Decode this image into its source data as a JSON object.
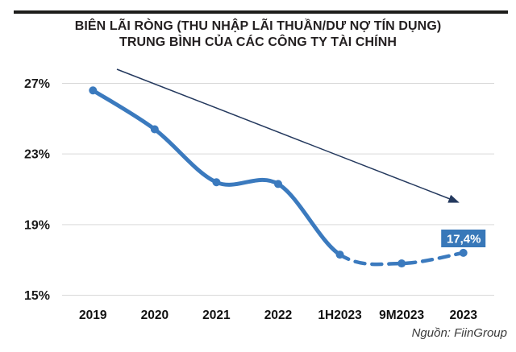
{
  "page": {
    "title_line1": "BIÊN LÃI RÒNG (THU NHẬP LÃI THUẦN/DƯ NỢ TÍN DỤNG)",
    "title_line2": "TRUNG BÌNH CỦA CÁC CÔNG TY TÀI CHÍNH",
    "source": "Nguồn: FiinGroup"
  },
  "colors": {
    "line_blue": "#3b7abe",
    "label_box_blue": "#3878b9",
    "label_text": "#ffffff",
    "trend_arrow": "#24395e",
    "gridline": "#d9d9d9",
    "title_text": "#231f20",
    "axis_text": "#1a1a1a"
  },
  "chart_data": {
    "type": "line",
    "title": "BIÊN LÃI RÒNG (THU NHẬP LÃI THUẦN/DƯ NỢ TÍN DỤNG) TRUNG BÌNH CỦA CÁC CÔNG TY TÀI CHÍNH",
    "categories": [
      "2019",
      "2020",
      "2021",
      "2022",
      "1H2023",
      "9M2023",
      "2023"
    ],
    "values": [
      26.6,
      24.4,
      21.4,
      21.3,
      17.3,
      16.8,
      17.4
    ],
    "solid_until_index": 4,
    "dashed_from_index": 4,
    "y_tick_labels": [
      "27%",
      "23%",
      "19%",
      "15%"
    ],
    "y_tick_values": [
      27,
      23,
      19,
      15
    ],
    "ylim": [
      15,
      27
    ],
    "xlabel": "",
    "ylabel": "",
    "grid": "horizontal-only",
    "legend": "none",
    "annotations": {
      "point_label": {
        "text": "17,4%",
        "category": "2023"
      },
      "trend_arrow": {
        "direction": "down-right",
        "from_category": "2019",
        "to_category": "2023"
      }
    },
    "source": "Nguồn: FiinGroup"
  }
}
